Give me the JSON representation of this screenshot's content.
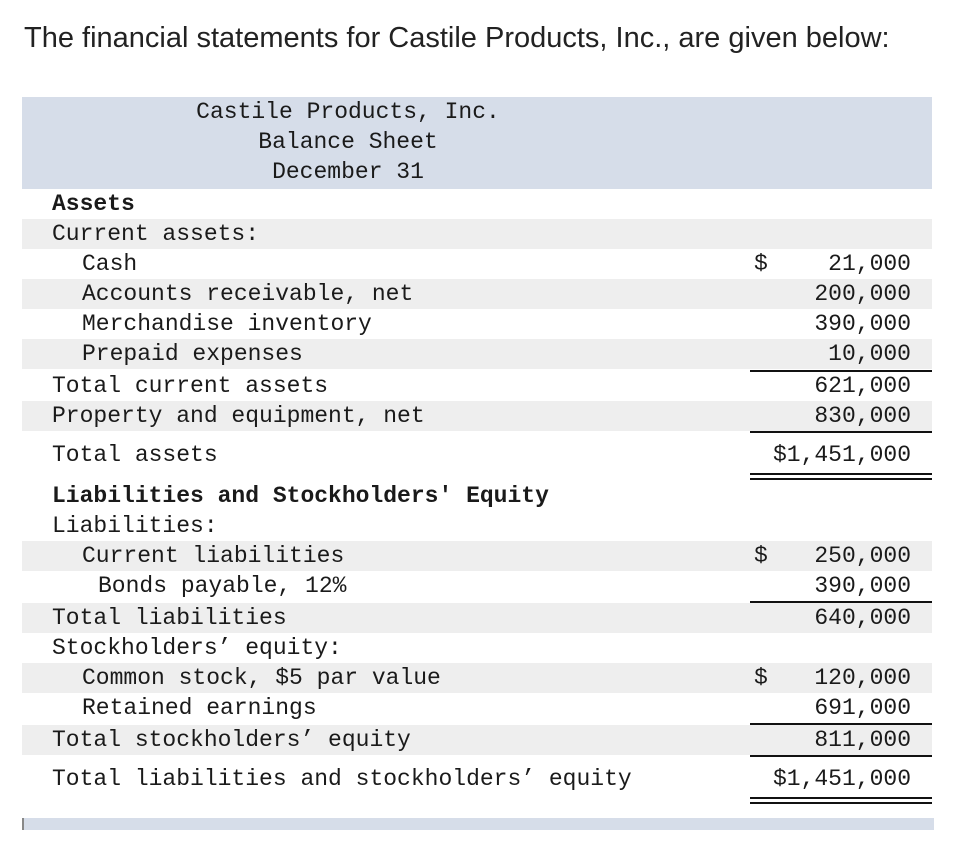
{
  "intro_text": "The financial statements for Castile Products, Inc., are given below:",
  "header": {
    "company": "Castile Products, Inc.",
    "statement": "Balance Sheet",
    "date": "December 31"
  },
  "rows": [
    {
      "label": "Assets",
      "dollar": "",
      "amount": ""
    },
    {
      "label": "Current assets:",
      "dollar": "",
      "amount": ""
    },
    {
      "label": "Cash",
      "dollar": "$",
      "amount": "21,000"
    },
    {
      "label": "Accounts receivable, net",
      "dollar": "",
      "amount": "200,000"
    },
    {
      "label": "Merchandise inventory",
      "dollar": "",
      "amount": "390,000"
    },
    {
      "label": "Prepaid expenses",
      "dollar": "",
      "amount": "10,000"
    },
    {
      "label": "Total current assets",
      "dollar": "",
      "amount": "621,000"
    },
    {
      "label": "Property and equipment, net",
      "dollar": "",
      "amount": "830,000"
    },
    {
      "label": "Total assets",
      "dollar": "",
      "amount": "$1,451,000"
    },
    {
      "label": "Liabilities and Stockholders' Equity",
      "dollar": "",
      "amount": ""
    },
    {
      "label": "Liabilities:",
      "dollar": "",
      "amount": ""
    },
    {
      "label": "Current liabilities",
      "dollar": "$",
      "amount": "250,000"
    },
    {
      "label": "Bonds payable, 12%",
      "dollar": "",
      "amount": "390,000"
    },
    {
      "label": "Total liabilities",
      "dollar": "",
      "amount": "640,000"
    },
    {
      "label": "Stockholders’ equity:",
      "dollar": "",
      "amount": ""
    },
    {
      "label": "Common stock, $5 par value",
      "dollar": "$",
      "amount": "120,000"
    },
    {
      "label": "Retained earnings",
      "dollar": "",
      "amount": "691,000"
    },
    {
      "label": "Total stockholders’ equity",
      "dollar": "",
      "amount": "811,000"
    },
    {
      "label": "Total liabilities and stockholders’ equity",
      "dollar": "",
      "amount": "$1,451,000"
    }
  ]
}
